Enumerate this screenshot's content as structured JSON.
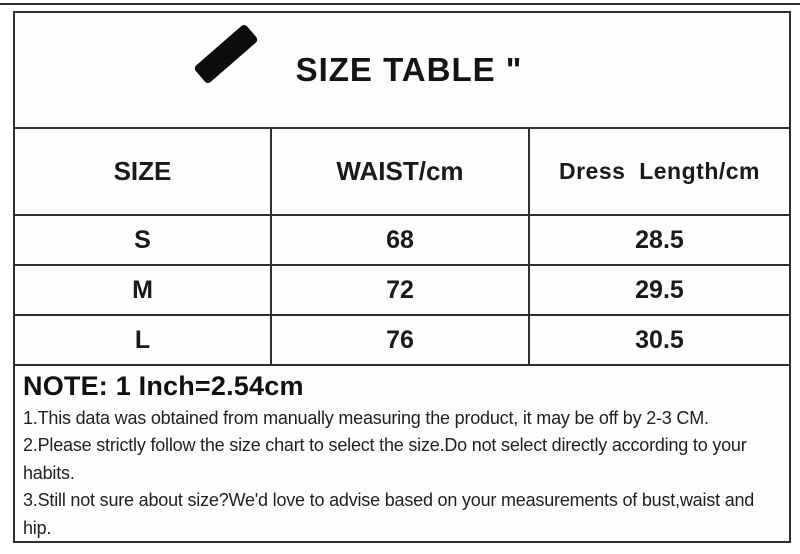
{
  "header": {
    "title": "SIZE TABLE \""
  },
  "size_table": {
    "columns": [
      "SIZE",
      "WAIST/cm",
      "Dress  Length/cm"
    ],
    "rows": [
      [
        "S",
        "68",
        "28.5"
      ],
      [
        "M",
        "72",
        "29.5"
      ],
      [
        "L",
        "76",
        "30.5"
      ]
    ]
  },
  "notes": {
    "headline": "NOTE: 1 Inch=2.54cm",
    "items": [
      "1.This data was obtained from manually measuring the product, it may be off by 2-3 CM.",
      "2.Please strictly follow the size chart to select the size.Do not select directly according to your habits.",
      "3.Still not sure about size?We'd love to advise based on your measurements of bust,waist and hip."
    ]
  },
  "icons": {
    "brand_mark": "diagonal-stroke"
  },
  "colors": {
    "border": "#2f2f2f",
    "text": "#1a1a1a",
    "background": "#ffffff",
    "mark": "#0c0c0c"
  }
}
